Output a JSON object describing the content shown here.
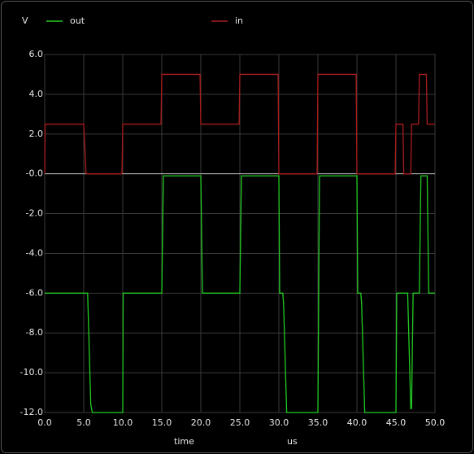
{
  "chart_data": {
    "type": "line",
    "y_label": "V",
    "x_label": "time",
    "x_unit": "us",
    "xlim": [
      0,
      50
    ],
    "ylim": [
      -12,
      6
    ],
    "xticks": [
      {
        "value": 0,
        "label": "0.0"
      },
      {
        "value": 5,
        "label": "5.0"
      },
      {
        "value": 10,
        "label": "10.0"
      },
      {
        "value": 15,
        "label": "15.0"
      },
      {
        "value": 20,
        "label": "20.0"
      },
      {
        "value": 25,
        "label": "25.0"
      },
      {
        "value": 30,
        "label": "30.0"
      },
      {
        "value": 35,
        "label": "35.0"
      },
      {
        "value": 40,
        "label": "40.0"
      },
      {
        "value": 45,
        "label": "45.0"
      },
      {
        "value": 50,
        "label": "50.0"
      }
    ],
    "yticks": [
      {
        "value": 6,
        "label": "6.0"
      },
      {
        "value": 4,
        "label": "4.0"
      },
      {
        "value": 2,
        "label": "2.0"
      },
      {
        "value": 0,
        "label": "-0.0"
      },
      {
        "value": -2,
        "label": "-2.0"
      },
      {
        "value": -4,
        "label": "-4.0"
      },
      {
        "value": -6,
        "label": "-6.0"
      },
      {
        "value": -8,
        "label": "-8.0"
      },
      {
        "value": -10,
        "label": "-10.0"
      },
      {
        "value": -12,
        "label": "-12.0"
      }
    ],
    "grid": true,
    "series": [
      {
        "name": "out",
        "color": "#22cc22",
        "x": [
          0,
          5.5,
          5.9,
          6.1,
          10,
          10.05,
          15,
          15.2,
          20,
          20.2,
          25,
          25.2,
          30,
          30.1,
          30.5,
          30.6,
          31,
          35,
          35.2,
          40,
          40.1,
          40.5,
          40.6,
          41,
          45,
          45.1,
          46.5,
          46.9,
          47.0,
          47.2,
          48,
          48.2,
          49,
          49.2,
          50
        ],
        "values": [
          -6,
          -6,
          -11.6,
          -12,
          -12,
          -6,
          -6,
          -0.1,
          -0.1,
          -6,
          -6,
          -0.1,
          -0.1,
          -6,
          -6,
          -6.5,
          -12,
          -12,
          -0.1,
          -0.1,
          -6,
          -6,
          -6.5,
          -12,
          -12,
          -6,
          -6,
          -11.8,
          -11.8,
          -6,
          -6,
          -0.1,
          -0.1,
          -6,
          -6
        ]
      },
      {
        "name": "in",
        "color": "#aa1c1c",
        "x": [
          0,
          0.05,
          5,
          5.3,
          9.9,
          10,
          14.9,
          15,
          19.9,
          20,
          24.9,
          25,
          29.9,
          30,
          34.9,
          35,
          39.9,
          40,
          44.9,
          45,
          45.9,
          46,
          46.9,
          47,
          47.9,
          48,
          48.9,
          49,
          50
        ],
        "values": [
          0,
          2.5,
          2.5,
          0,
          0,
          2.5,
          2.5,
          5,
          5,
          2.5,
          2.5,
          5,
          5,
          0,
          0,
          5,
          5,
          0,
          0,
          2.5,
          2.5,
          0,
          0,
          2.5,
          2.5,
          5,
          5,
          2.5,
          2.5
        ]
      }
    ]
  }
}
